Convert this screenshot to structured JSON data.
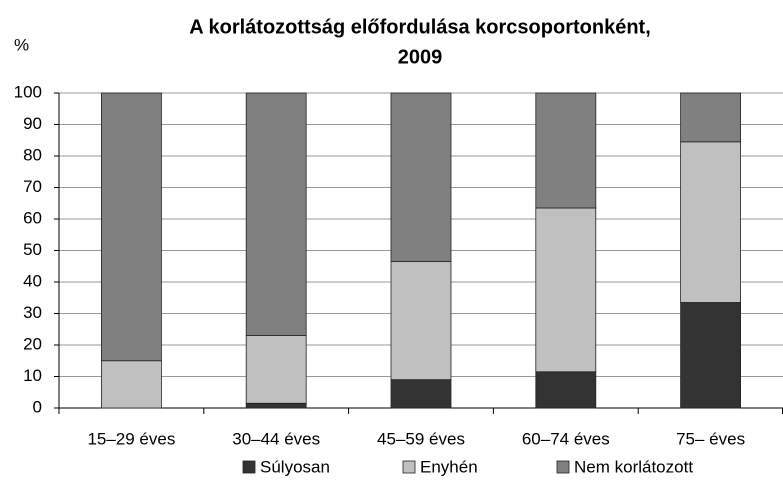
{
  "chart_data": {
    "type": "stacked_bar",
    "title": [
      "A korlátozottság előfordulása korcsoportonként,",
      "2009"
    ],
    "y_label": "%",
    "categories": [
      "15–29 éves",
      "30–44 éves",
      "45–59 éves",
      "60–74 éves",
      "75– éves"
    ],
    "series": [
      {
        "name": "Súlyosan",
        "color": "#333333",
        "values": [
          0,
          1.5,
          9,
          11.5,
          33.5
        ]
      },
      {
        "name": "Enyhén",
        "color": "#c0c0c0",
        "values": [
          15,
          21.5,
          37.5,
          52,
          51
        ]
      },
      {
        "name": "Nem korlátozott",
        "color": "#808080",
        "values": [
          85,
          77,
          53.5,
          36.5,
          15.5
        ]
      }
    ],
    "ylim": [
      0,
      100
    ],
    "yticks": [
      0,
      10,
      20,
      30,
      40,
      50,
      60,
      70,
      80,
      90,
      100
    ],
    "grid": true
  }
}
